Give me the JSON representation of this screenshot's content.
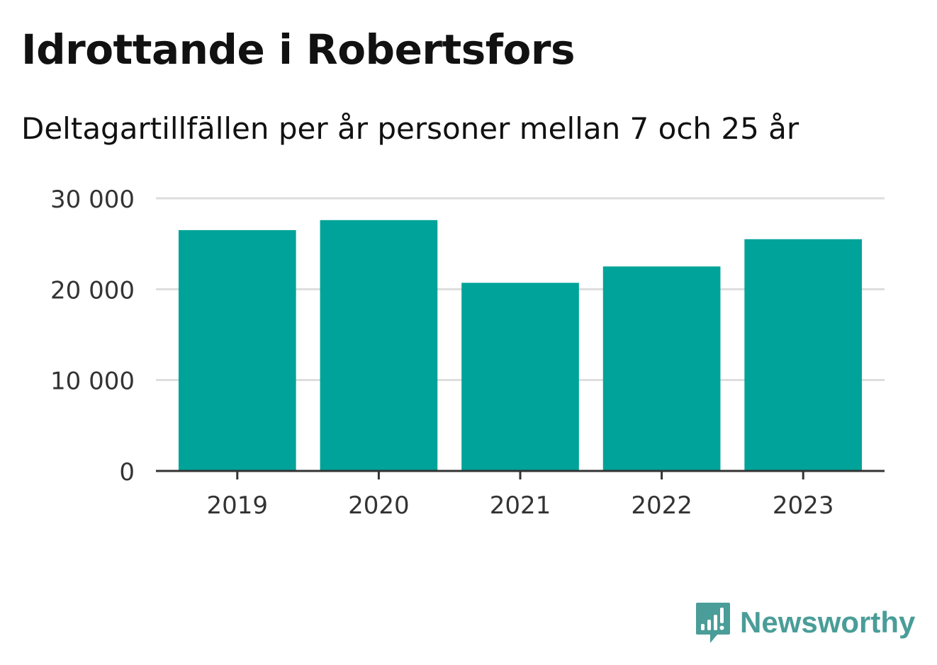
{
  "chart_data": {
    "type": "bar",
    "title": "Idrottande i Robertsfors",
    "subtitle": "Deltagartillfällen per år personer mellan 7 och 25 år",
    "categories": [
      "2019",
      "2020",
      "2021",
      "2022",
      "2023"
    ],
    "values": [
      26500,
      27600,
      20700,
      22500,
      25500
    ],
    "ylim": [
      0,
      30000
    ],
    "yticks": [
      0,
      10000,
      20000,
      30000
    ],
    "ytick_labels": [
      "0",
      "10 000",
      "20 000",
      "30 000"
    ],
    "xlabel": "",
    "ylabel": "",
    "grid": true,
    "bar_color": "#00a399",
    "grid_color": "#dddddd",
    "axis_color": "#333333"
  },
  "branding": {
    "logo_text": "Newsworthy",
    "logo_icon": "newsworthy-bar-chart-icon",
    "logo_color": "#4a9d98"
  }
}
